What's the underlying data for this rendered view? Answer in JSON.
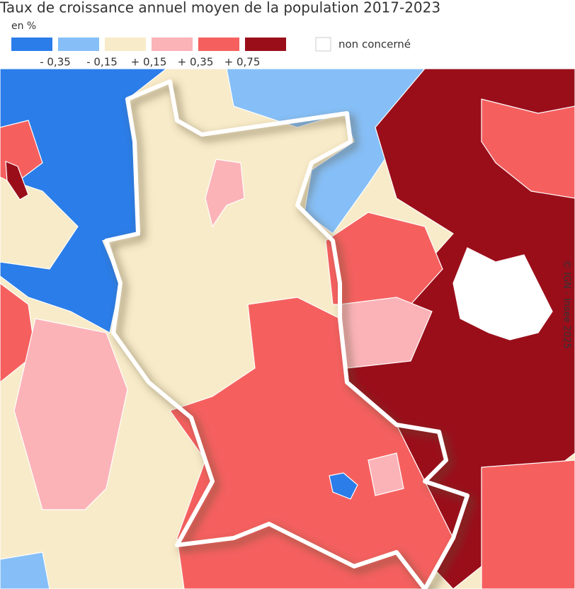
{
  "title": "Taux de croissance annuel moyen de la population 2017-2023",
  "subtitle": "en %",
  "legend": {
    "colors": [
      "#2b7de9",
      "#86bff7",
      "#f8ebc9",
      "#fbb3b8",
      "#f5605f",
      "#9a0e1a"
    ],
    "breaks": [
      "- 0,35",
      "- 0,15",
      "+ 0,15",
      "+ 0,35",
      "+ 0,75"
    ],
    "na_label": "non concerné",
    "na_color": "#ffffff"
  },
  "credit": "© IGN - Insee 2025"
}
